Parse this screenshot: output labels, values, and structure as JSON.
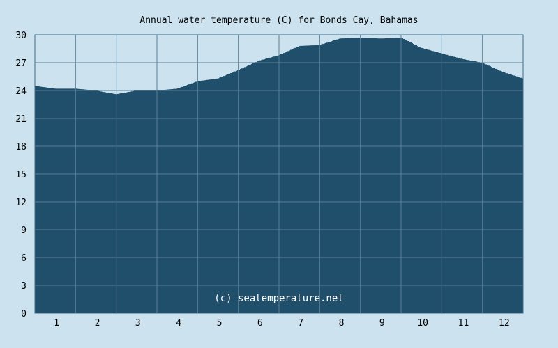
{
  "chart_data": {
    "type": "area",
    "title": "Annual water temperature (C) for Bonds Cay, Bahamas",
    "xlabel": "",
    "ylabel": "",
    "credit": "(c) seatemperature.net",
    "ylim": [
      0,
      30
    ],
    "y_ticks": [
      "0",
      "3",
      "6",
      "9",
      "12",
      "15",
      "18",
      "21",
      "24",
      "27",
      "30"
    ],
    "x_ticks": [
      "1",
      "2",
      "3",
      "4",
      "5",
      "6",
      "7",
      "8",
      "9",
      "10",
      "11",
      "12"
    ],
    "grid": true,
    "legend": "none",
    "colors": {
      "background": "#cce3ef",
      "fill": "#1f4f6b",
      "grid": "#5b7f97",
      "axis": "#3f6a86"
    },
    "series": [
      {
        "x_month": [
          1.0,
          1.5,
          2.0,
          2.5,
          3.0,
          3.5,
          4.0,
          4.5,
          5.0,
          5.5,
          6.0,
          6.5,
          7.0,
          7.5,
          8.0,
          8.5,
          9.0,
          9.5,
          10.0,
          10.5,
          11.0,
          11.5,
          12.0,
          12.5,
          13.0
        ],
        "values": [
          24.5,
          24.2,
          24.2,
          24.0,
          23.6,
          24.0,
          24.0,
          24.2,
          25.0,
          25.3,
          26.2,
          27.2,
          27.8,
          28.8,
          28.9,
          29.6,
          29.7,
          29.6,
          29.7,
          28.6,
          28.0,
          27.4,
          27.0,
          26.0,
          25.3
        ]
      }
    ]
  }
}
